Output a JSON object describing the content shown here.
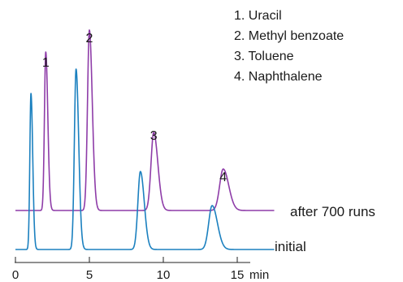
{
  "chart_data": {
    "type": "line",
    "xlabel": "",
    "x_unit": "min",
    "ylabel": "",
    "xlim": [
      0,
      16.5
    ],
    "x_ticks": [
      0,
      5,
      10,
      15
    ],
    "x_tick_labels": [
      "0",
      "5",
      "10",
      "15"
    ],
    "grid": false,
    "legend": [
      "1. Uracil",
      "2. Methyl benzoate",
      "3. Toluene",
      "4. Naphthalene"
    ],
    "legend_position": "top-right",
    "peak_labels": [
      {
        "label": "1",
        "x": 2.05,
        "y": 0.73
      },
      {
        "label": "2",
        "x": 5.0,
        "y": 0.83
      },
      {
        "label": "3",
        "x": 9.35,
        "y": 0.43
      },
      {
        "label": "4",
        "x": 14.05,
        "y": 0.26
      }
    ],
    "series": [
      {
        "name": "initial",
        "color": "#1b80bf",
        "baseline": 0,
        "peaks": [
          {
            "x": 1.05,
            "height": 0.64
          },
          {
            "x": 4.1,
            "height": 0.74
          },
          {
            "x": 8.45,
            "height": 0.32
          },
          {
            "x": 13.3,
            "height": 0.18
          }
        ]
      },
      {
        "name": "after 700 runs",
        "color": "#8e3ca8",
        "baseline": 0.16,
        "peaks": [
          {
            "x": 2.05,
            "height": 0.65
          },
          {
            "x": 5.0,
            "height": 0.74
          },
          {
            "x": 9.35,
            "height": 0.32
          },
          {
            "x": 14.05,
            "height": 0.17
          }
        ]
      }
    ]
  }
}
